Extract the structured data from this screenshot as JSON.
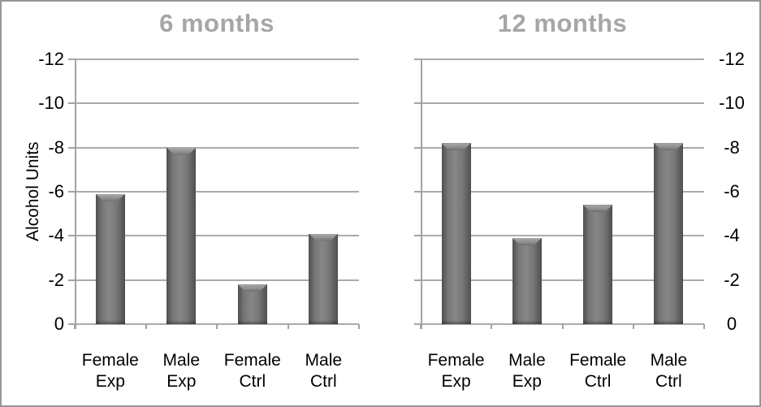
{
  "figure": {
    "colors": {
      "frame_border": "#969696",
      "background": "#ffffff",
      "gridline": "#ababab",
      "axis": "#a3a3a3",
      "title_text": "#a6a6a6",
      "label_text": "#000000",
      "bar_body": "#787878",
      "bar_edge": "#4f4f4f",
      "bar_highlight": "#a8a8a8"
    }
  },
  "chart_data": [
    {
      "type": "bar",
      "title": "6 months",
      "ylabel": "Alcohol Units",
      "categories": [
        [
          "Female",
          "Exp"
        ],
        [
          "Male",
          "Exp"
        ],
        [
          "Female",
          "Ctrl"
        ],
        [
          "Male",
          "Ctrl"
        ]
      ],
      "values": [
        -5.9,
        -8.0,
        -1.8,
        -4.1
      ],
      "y_ticks_top_to_bottom": [
        "-12",
        "-10",
        "-8",
        "-6",
        "-4",
        "-2",
        "0"
      ],
      "ylim": [
        0,
        -12
      ],
      "y_axis_inverted": true,
      "tick_label_side": "left",
      "grid": "horizontal",
      "legend": "none"
    },
    {
      "type": "bar",
      "title": "12 months",
      "categories": [
        [
          "Female",
          "Exp"
        ],
        [
          "Male",
          "Exp"
        ],
        [
          "Female",
          "Ctrl"
        ],
        [
          "Male",
          "Ctrl"
        ]
      ],
      "values": [
        -8.2,
        -3.9,
        -5.4,
        -8.2
      ],
      "y_ticks_top_to_bottom": [
        "-12",
        "-10",
        "-8",
        "-6",
        "-4",
        "-2",
        "0"
      ],
      "ylim": [
        0,
        -12
      ],
      "y_axis_inverted": true,
      "tick_label_side": "right",
      "grid": "horizontal",
      "legend": "none"
    }
  ]
}
